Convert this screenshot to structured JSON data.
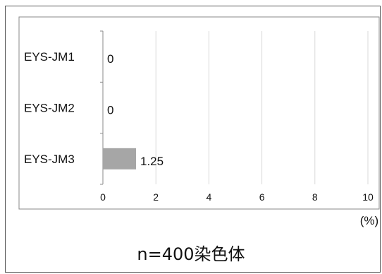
{
  "chart_data": {
    "type": "bar",
    "orientation": "horizontal",
    "categories": [
      "EYS-JM1",
      "EYS-JM2",
      "EYS-JM3"
    ],
    "values": [
      0,
      0,
      1.25
    ],
    "value_labels": [
      "0",
      "0",
      "1.25"
    ],
    "x_ticks": [
      "0",
      "2",
      "4",
      "6",
      "8",
      "10"
    ],
    "xlim": [
      0,
      10
    ],
    "xlabel": "(%)",
    "grid": "vertical",
    "bar_color": "#a6a6a6"
  },
  "footnote": "n=400染色体"
}
